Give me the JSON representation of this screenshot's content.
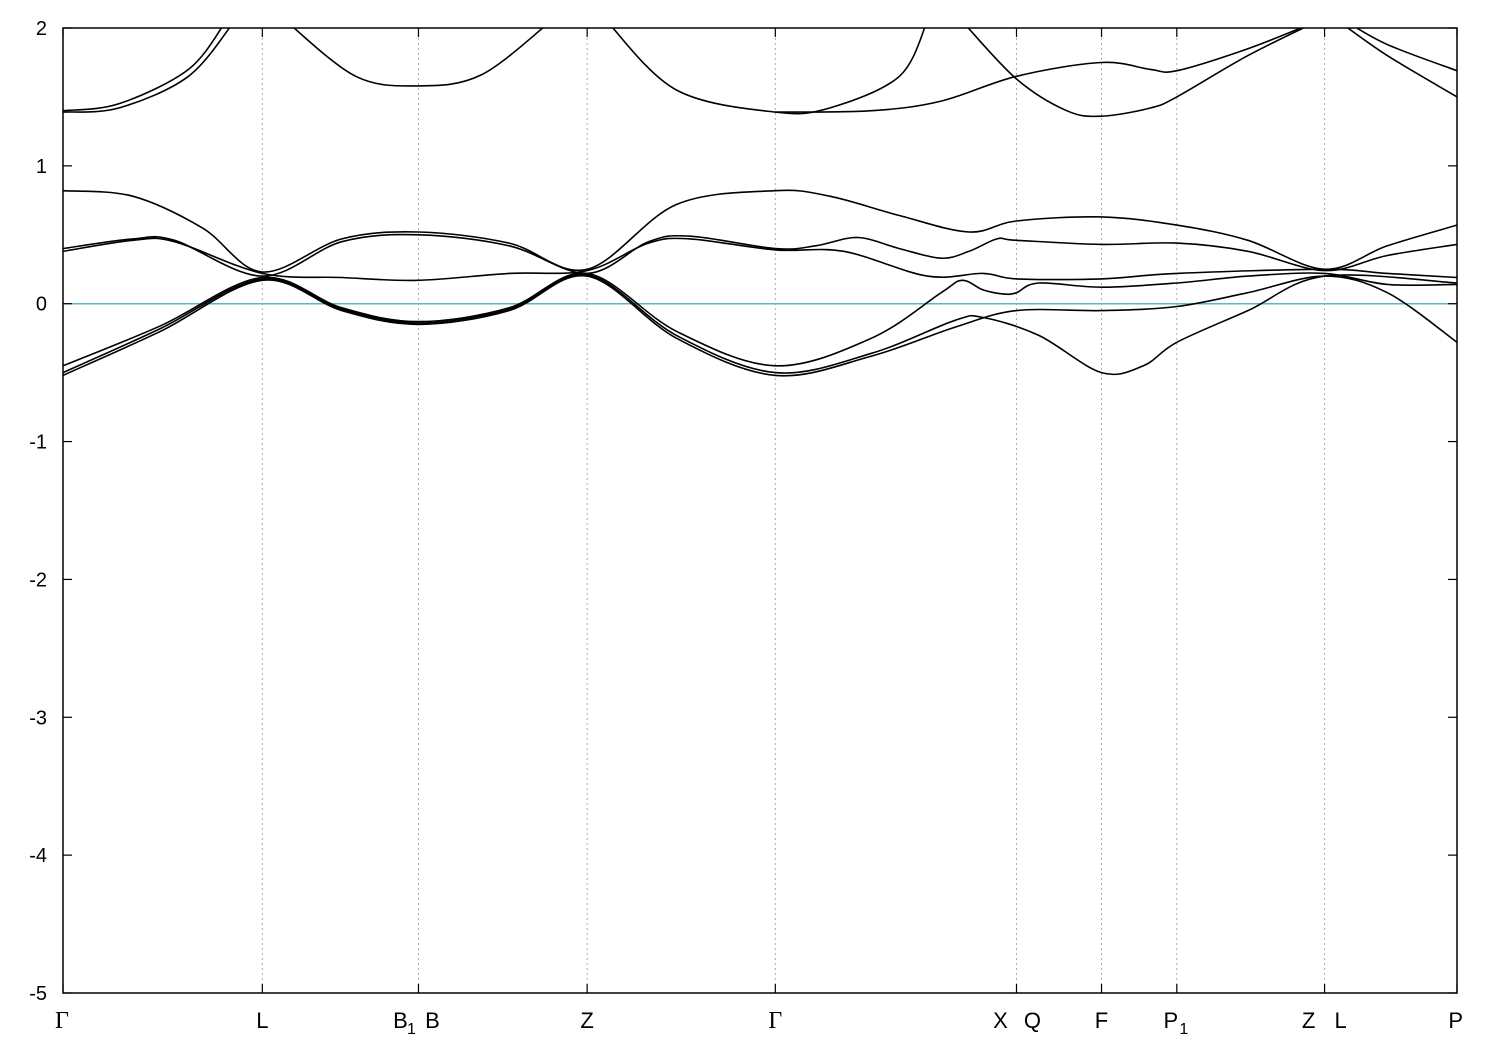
{
  "chart_data": {
    "type": "line",
    "title": "",
    "xlabel": "",
    "ylabel": "",
    "ylim": [
      -5,
      2
    ],
    "xlim": [
      0,
      1
    ],
    "yticks": [
      -5,
      -4,
      -3,
      -2,
      -1,
      0,
      1,
      2
    ],
    "ytick_labels": [
      "-5",
      "-4",
      "-3",
      "-2",
      "-1",
      "0",
      "1",
      "2"
    ],
    "grid": "vertical dotted at k-points",
    "legend": "none",
    "colors": {
      "bands": "#000000",
      "fermi_level": "#5fb4c8",
      "grid": "#aaaaaa"
    },
    "fermi_level": 0,
    "k_points": [
      {
        "x": 0.0,
        "label": "Γ"
      },
      {
        "x": 0.143,
        "label": "L"
      },
      {
        "x": 0.255,
        "label": "B",
        "sub": "1",
        "sub_label": "B"
      },
      {
        "x": 0.376,
        "label": "Z"
      },
      {
        "x": 0.511,
        "label": "Γ"
      },
      {
        "x": 0.684,
        "label": "X",
        "second": "Q"
      },
      {
        "x": 0.745,
        "label": "F"
      },
      {
        "x": 0.799,
        "label": "P",
        "sub": "1"
      },
      {
        "x": 0.905,
        "label": "Z",
        "second": "L"
      },
      {
        "x": 1.0,
        "label": "P"
      }
    ],
    "series": [
      {
        "points": [
          [
            0,
            -0.52
          ],
          [
            0.07,
            -0.2
          ],
          [
            0.143,
            0.17
          ],
          [
            0.2,
            -0.05
          ],
          [
            0.255,
            -0.15
          ],
          [
            0.32,
            -0.05
          ],
          [
            0.376,
            0.2
          ],
          [
            0.44,
            -0.25
          ],
          [
            0.511,
            -0.52
          ],
          [
            0.58,
            -0.38
          ],
          [
            0.64,
            -0.17
          ],
          [
            0.684,
            -0.05
          ],
          [
            0.745,
            -0.05
          ],
          [
            0.799,
            -0.02
          ],
          [
            0.85,
            0.08
          ],
          [
            0.905,
            0.2
          ],
          [
            0.95,
            0.08
          ],
          [
            1.0,
            -0.28
          ]
        ]
      },
      {
        "points": [
          [
            0,
            -0.5
          ],
          [
            0.07,
            -0.18
          ],
          [
            0.143,
            0.18
          ],
          [
            0.2,
            -0.04
          ],
          [
            0.255,
            -0.14
          ],
          [
            0.32,
            -0.04
          ],
          [
            0.376,
            0.21
          ],
          [
            0.44,
            -0.23
          ],
          [
            0.511,
            -0.5
          ],
          [
            0.58,
            -0.36
          ],
          [
            0.64,
            -0.12
          ],
          [
            0.66,
            -0.1
          ],
          [
            0.7,
            -0.23
          ],
          [
            0.745,
            -0.5
          ],
          [
            0.775,
            -0.45
          ],
          [
            0.799,
            -0.28
          ],
          [
            0.85,
            -0.05
          ],
          [
            0.905,
            0.2
          ],
          [
            1.0,
            0.15
          ]
        ]
      },
      {
        "points": [
          [
            0,
            -0.45
          ],
          [
            0.07,
            -0.16
          ],
          [
            0.143,
            0.19
          ],
          [
            0.2,
            -0.03
          ],
          [
            0.255,
            -0.13
          ],
          [
            0.32,
            -0.03
          ],
          [
            0.376,
            0.22
          ],
          [
            0.44,
            -0.2
          ],
          [
            0.511,
            -0.45
          ],
          [
            0.58,
            -0.25
          ],
          [
            0.63,
            0.08
          ],
          [
            0.645,
            0.17
          ],
          [
            0.66,
            0.1
          ],
          [
            0.675,
            0.07
          ],
          [
            0.684,
            0.08
          ],
          [
            0.7,
            0.15
          ],
          [
            0.745,
            0.12
          ],
          [
            0.799,
            0.15
          ],
          [
            0.85,
            0.2
          ],
          [
            0.905,
            0.22
          ],
          [
            0.95,
            0.14
          ],
          [
            1.0,
            0.14
          ]
        ]
      },
      {
        "points": [
          [
            0,
            0.38
          ],
          [
            0.05,
            0.46
          ],
          [
            0.08,
            0.45
          ],
          [
            0.143,
            0.22
          ],
          [
            0.2,
            0.19
          ],
          [
            0.255,
            0.17
          ],
          [
            0.32,
            0.22
          ],
          [
            0.376,
            0.24
          ],
          [
            0.42,
            0.44
          ],
          [
            0.45,
            0.47
          ],
          [
            0.511,
            0.39
          ],
          [
            0.56,
            0.38
          ],
          [
            0.62,
            0.2
          ],
          [
            0.66,
            0.22
          ],
          [
            0.684,
            0.18
          ],
          [
            0.745,
            0.18
          ],
          [
            0.799,
            0.22
          ],
          [
            0.905,
            0.25
          ],
          [
            0.95,
            0.22
          ],
          [
            1.0,
            0.19
          ]
        ]
      },
      {
        "points": [
          [
            0,
            0.4
          ],
          [
            0.05,
            0.47
          ],
          [
            0.08,
            0.46
          ],
          [
            0.143,
            0.2
          ],
          [
            0.2,
            0.45
          ],
          [
            0.255,
            0.5
          ],
          [
            0.32,
            0.42
          ],
          [
            0.376,
            0.22
          ],
          [
            0.42,
            0.45
          ],
          [
            0.45,
            0.49
          ],
          [
            0.511,
            0.4
          ],
          [
            0.54,
            0.42
          ],
          [
            0.57,
            0.48
          ],
          [
            0.6,
            0.4
          ],
          [
            0.63,
            0.33
          ],
          [
            0.65,
            0.38
          ],
          [
            0.67,
            0.47
          ],
          [
            0.684,
            0.46
          ],
          [
            0.745,
            0.43
          ],
          [
            0.799,
            0.44
          ],
          [
            0.85,
            0.38
          ],
          [
            0.905,
            0.24
          ],
          [
            0.95,
            0.35
          ],
          [
            1.0,
            0.43
          ]
        ]
      },
      {
        "points": [
          [
            0,
            0.82
          ],
          [
            0.05,
            0.78
          ],
          [
            0.1,
            0.55
          ],
          [
            0.143,
            0.23
          ],
          [
            0.2,
            0.47
          ],
          [
            0.255,
            0.52
          ],
          [
            0.32,
            0.44
          ],
          [
            0.376,
            0.25
          ],
          [
            0.44,
            0.72
          ],
          [
            0.511,
            0.82
          ],
          [
            0.55,
            0.78
          ],
          [
            0.6,
            0.64
          ],
          [
            0.65,
            0.52
          ],
          [
            0.684,
            0.6
          ],
          [
            0.745,
            0.63
          ],
          [
            0.799,
            0.57
          ],
          [
            0.85,
            0.46
          ],
          [
            0.905,
            0.25
          ],
          [
            0.95,
            0.42
          ],
          [
            1.0,
            0.57
          ]
        ]
      },
      {
        "points": [
          [
            0,
            1.39
          ],
          [
            0.04,
            1.42
          ],
          [
            0.09,
            1.65
          ],
          [
            0.123,
            2.05
          ]
        ]
      },
      {
        "points": [
          [
            0,
            1.4
          ],
          [
            0.04,
            1.45
          ],
          [
            0.09,
            1.7
          ],
          [
            0.117,
            2.05
          ]
        ]
      },
      {
        "points": [
          [
            0.16,
            2.05
          ],
          [
            0.21,
            1.65
          ],
          [
            0.255,
            1.58
          ],
          [
            0.3,
            1.66
          ],
          [
            0.35,
            2.05
          ]
        ]
      },
      {
        "points": [
          [
            0.39,
            2.05
          ],
          [
            0.44,
            1.55
          ],
          [
            0.511,
            1.39
          ],
          [
            0.55,
            1.42
          ],
          [
            0.6,
            1.65
          ],
          [
            0.62,
            2.05
          ]
        ]
      },
      {
        "points": [
          [
            0.511,
            1.39
          ],
          [
            0.58,
            1.4
          ],
          [
            0.63,
            1.47
          ],
          [
            0.684,
            1.65
          ],
          [
            0.745,
            1.75
          ],
          [
            0.78,
            1.7
          ],
          [
            0.799,
            1.69
          ],
          [
            0.85,
            1.85
          ],
          [
            0.9,
            2.05
          ]
        ]
      },
      {
        "points": [
          [
            0.645,
            2.05
          ],
          [
            0.684,
            1.63
          ],
          [
            0.72,
            1.4
          ],
          [
            0.745,
            1.36
          ],
          [
            0.78,
            1.42
          ],
          [
            0.799,
            1.5
          ],
          [
            0.85,
            1.8
          ],
          [
            0.9,
            2.05
          ]
        ]
      },
      {
        "points": [
          [
            0.92,
            2.05
          ],
          [
            0.95,
            1.88
          ],
          [
            1.0,
            1.69
          ]
        ]
      },
      {
        "points": [
          [
            0.915,
            2.05
          ],
          [
            0.95,
            1.8
          ],
          [
            1.0,
            1.5
          ]
        ]
      }
    ]
  }
}
